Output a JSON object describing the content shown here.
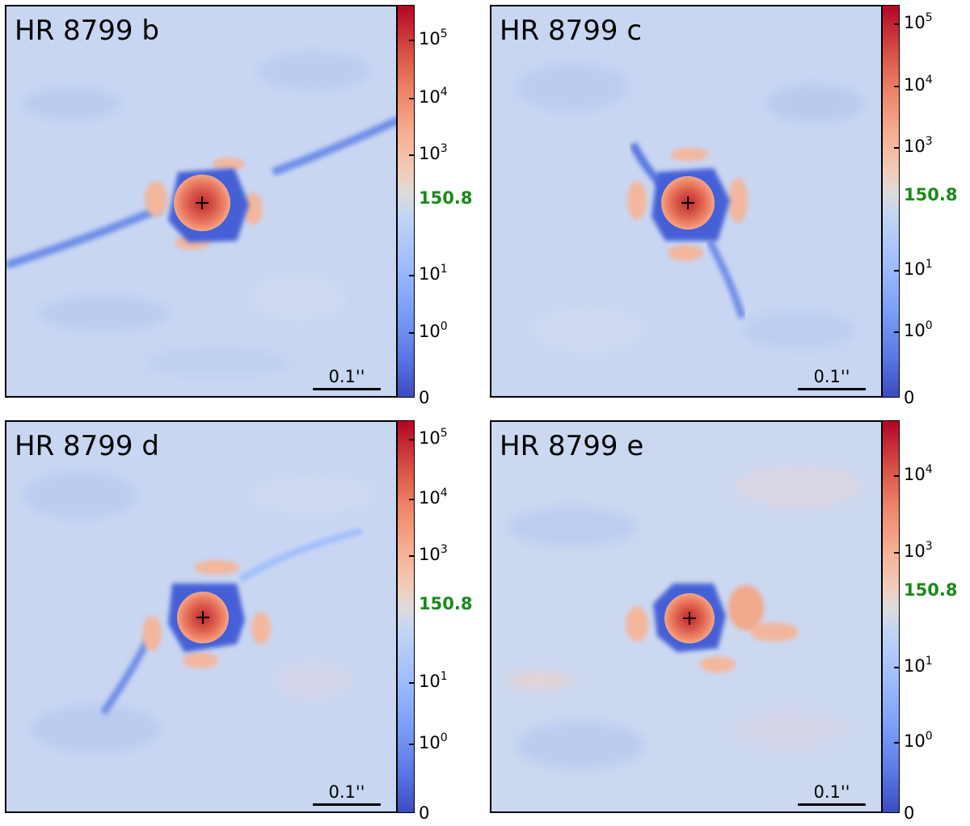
{
  "figure": {
    "panels": [
      {
        "title": "HR 8799 b",
        "scale_label": "0.1''",
        "colorbar": {
          "ticks": [
            "10",
            "10",
            "10",
            "10",
            "10",
            "0"
          ],
          "exponents": [
            "5",
            "4",
            "3",
            "1",
            "0",
            ""
          ],
          "highlight": "150.8"
        }
      },
      {
        "title": "HR 8799 c",
        "scale_label": "0.1''",
        "colorbar": {
          "ticks": [
            "10",
            "10",
            "10",
            "10",
            "10",
            "0"
          ],
          "exponents": [
            "5",
            "4",
            "3",
            "1",
            "0",
            ""
          ],
          "highlight": "150.8"
        }
      },
      {
        "title": "HR 8799 d",
        "scale_label": "0.1''",
        "colorbar": {
          "ticks": [
            "10",
            "10",
            "10",
            "10",
            "10",
            "0"
          ],
          "exponents": [
            "5",
            "4",
            "3",
            "1",
            "0",
            ""
          ],
          "highlight": "150.8"
        }
      },
      {
        "title": "HR 8799 e",
        "scale_label": "0.1''",
        "colorbar": {
          "ticks": [
            "10",
            "10",
            "10",
            "10",
            "0"
          ],
          "exponents": [
            "4",
            "3",
            "1",
            "0",
            ""
          ],
          "highlight": "150.8"
        }
      }
    ],
    "colormap": "coolwarm",
    "colors": {
      "low": "#3b4cc0",
      "mid": "#dddcdc",
      "high": "#b40426",
      "highlight_label": "#1a8a1a"
    },
    "marker_icon": "plus-marker-icon"
  }
}
